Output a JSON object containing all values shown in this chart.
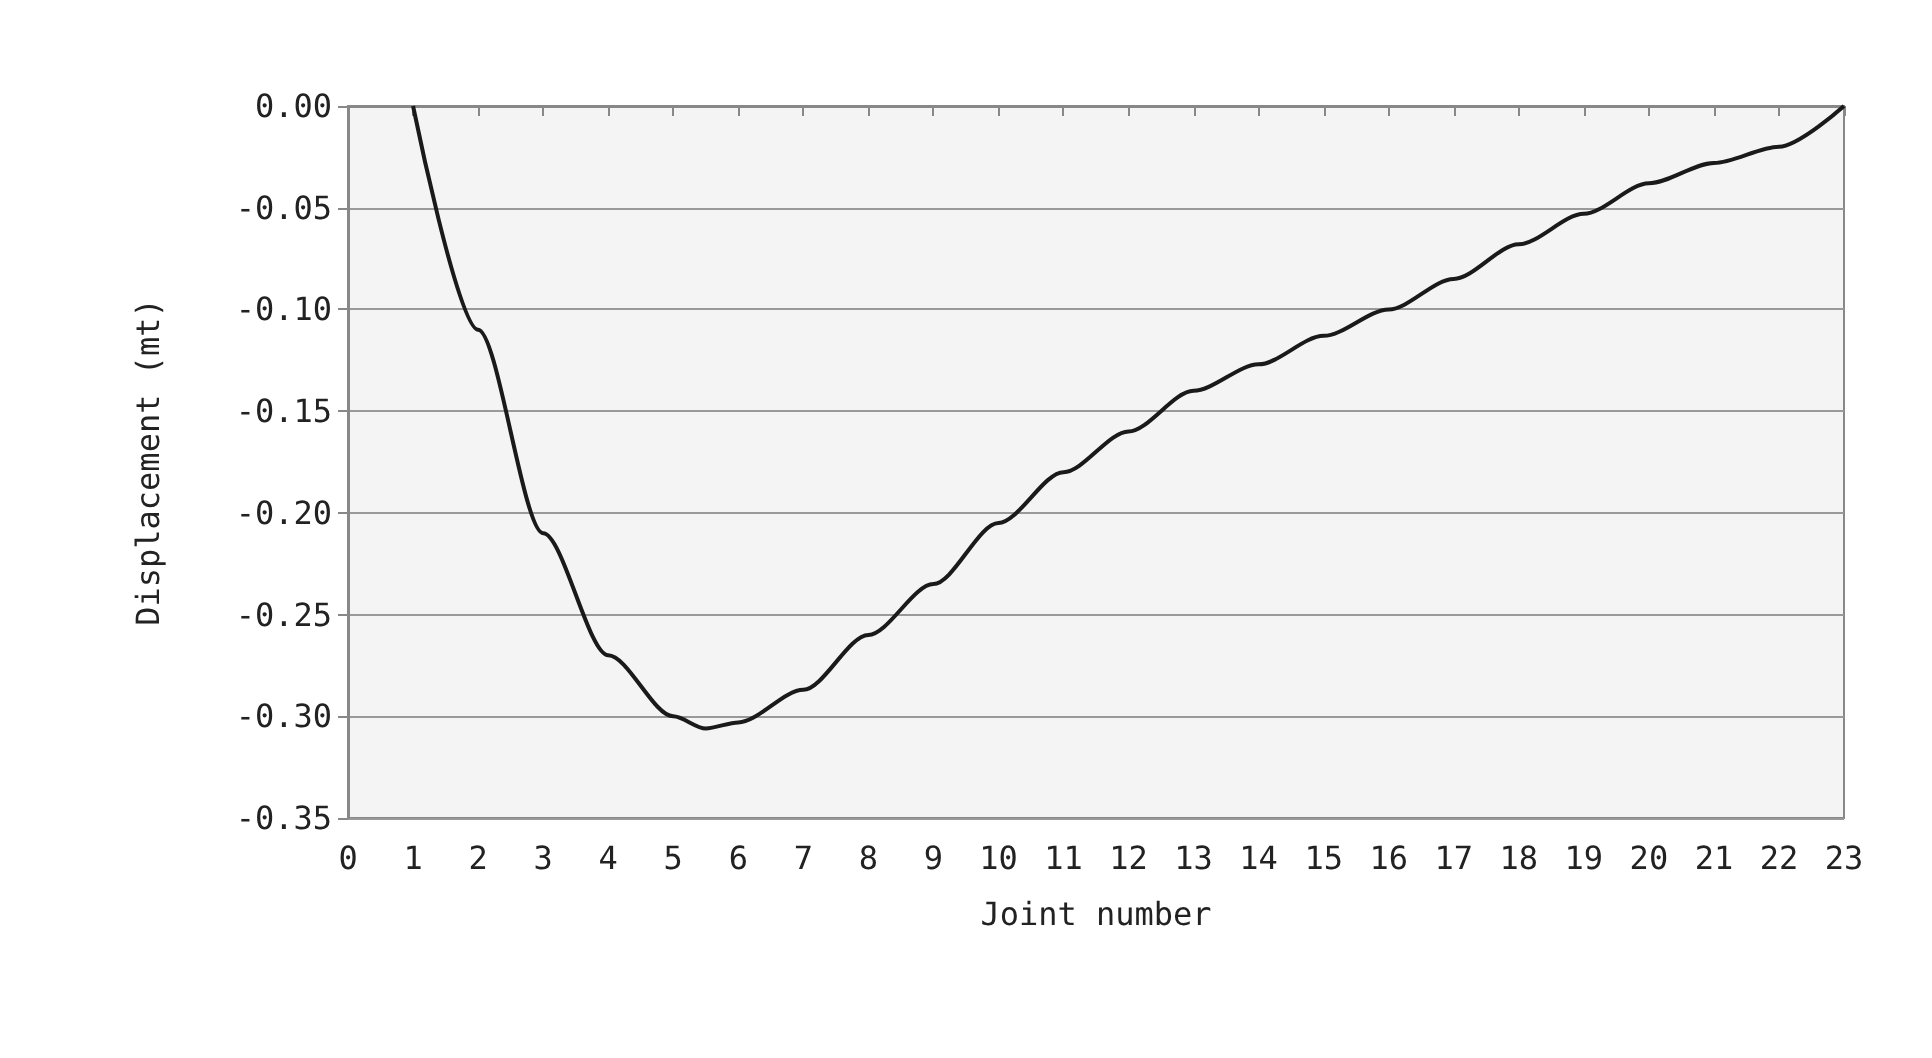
{
  "chart_data": {
    "type": "line",
    "xlabel": "Joint number",
    "ylabel": "Displacement (mt)",
    "xlim": [
      0,
      23
    ],
    "xticks": [
      0,
      1,
      2,
      3,
      4,
      5,
      6,
      7,
      8,
      9,
      10,
      11,
      12,
      13,
      14,
      15,
      16,
      17,
      18,
      19,
      20,
      21,
      22,
      23
    ],
    "ylim": [
      -0.35,
      0
    ],
    "yticks": [
      {
        "value": 0,
        "label": "0.00"
      },
      {
        "value": -0.05,
        "label": "-0.05"
      },
      {
        "value": -0.1,
        "label": "-0.10"
      },
      {
        "value": -0.15,
        "label": "-0.15"
      },
      {
        "value": -0.2,
        "label": "-0.20"
      },
      {
        "value": -0.25,
        "label": "-0.25"
      },
      {
        "value": -0.3,
        "label": "-0.30"
      },
      {
        "value": -0.35,
        "label": "-0.35"
      }
    ],
    "grid": "y",
    "marker": "none",
    "line_style": "solid",
    "series": [
      {
        "color": "#1a1a1a",
        "x": [
          1,
          2,
          3,
          4,
          5,
          5.5,
          6,
          7,
          8,
          9,
          10,
          11,
          12,
          13,
          14,
          15,
          16,
          17,
          18,
          19,
          20,
          21,
          22,
          23
        ],
        "values": [
          0,
          -0.11,
          -0.21,
          -0.27,
          -0.3,
          -0.306,
          -0.303,
          -0.287,
          -0.26,
          -0.235,
          -0.205,
          -0.18,
          -0.16,
          -0.14,
          -0.127,
          -0.113,
          -0.1,
          -0.085,
          -0.068,
          -0.053,
          -0.038,
          -0.028,
          -0.02,
          0
        ]
      }
    ]
  }
}
